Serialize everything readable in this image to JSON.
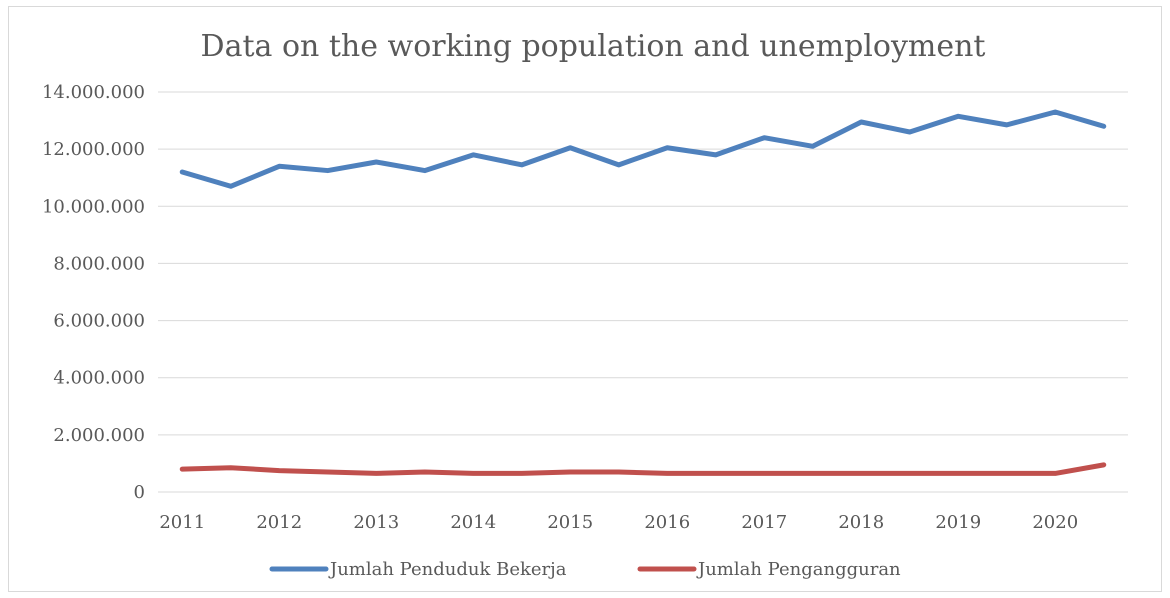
{
  "chart_data": {
    "type": "line",
    "title": "Data on the working population and unemployment",
    "xlabel": "",
    "ylabel": "",
    "ylim": [
      0,
      14000000
    ],
    "yticks": [
      0,
      2000000,
      4000000,
      6000000,
      8000000,
      10000000,
      12000000,
      14000000
    ],
    "ytick_labels": [
      "0",
      "2.000.000",
      "4.000.000",
      "6.000.000",
      "8.000.000",
      "10.000.000",
      "12.000.000",
      "14.000.000"
    ],
    "xtick_labels": [
      "2011",
      "2012",
      "2013",
      "2014",
      "2015",
      "2016",
      "2017",
      "2018",
      "2019",
      "2020"
    ],
    "x": [
      2011,
      2011.5,
      2012,
      2012.5,
      2013,
      2013.5,
      2014,
      2014.5,
      2015,
      2015.5,
      2016,
      2016.5,
      2017,
      2017.5,
      2018,
      2018.5,
      2019,
      2019.5,
      2020,
      2020.5
    ],
    "grid": true,
    "legend_position": "bottom",
    "series": [
      {
        "name": "Jumlah Penduduk Bekerja",
        "color": "#4f81bd",
        "values": [
          11200000,
          10700000,
          11400000,
          11250000,
          11550000,
          11250000,
          11800000,
          11450000,
          12050000,
          11450000,
          12050000,
          11800000,
          12400000,
          12100000,
          12950000,
          12600000,
          13150000,
          12850000,
          13300000,
          12800000
        ]
      },
      {
        "name": "Jumlah Pengangguran",
        "color": "#c0504d",
        "values": [
          800000,
          850000,
          750000,
          700000,
          650000,
          700000,
          650000,
          650000,
          700000,
          700000,
          650000,
          650000,
          650000,
          650000,
          650000,
          650000,
          650000,
          650000,
          650000,
          950000
        ]
      }
    ]
  }
}
